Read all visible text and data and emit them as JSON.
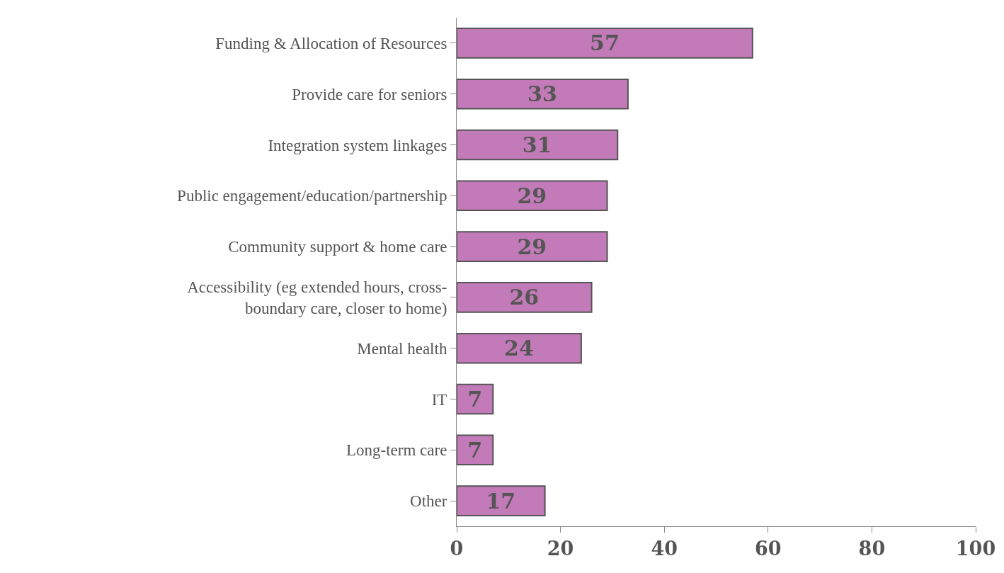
{
  "chart_data": {
    "type": "bar",
    "orientation": "horizontal",
    "categories": [
      "Funding & Allocation of Resources",
      "Provide care for seniors",
      "Integration system linkages",
      "Public engagement/education/partnership",
      "Community support & home care",
      "Accessibility (eg extended hours, cross-\nboundary care, closer to home)",
      "Mental health",
      "IT",
      "Long-term care",
      "Other"
    ],
    "values": [
      57,
      33,
      31,
      29,
      29,
      26,
      24,
      7,
      7,
      17
    ],
    "color": "#c27bb8",
    "xlim": [
      0,
      100
    ],
    "xticks": [
      0,
      20,
      40,
      60,
      80,
      100
    ],
    "data_labels": true
  }
}
